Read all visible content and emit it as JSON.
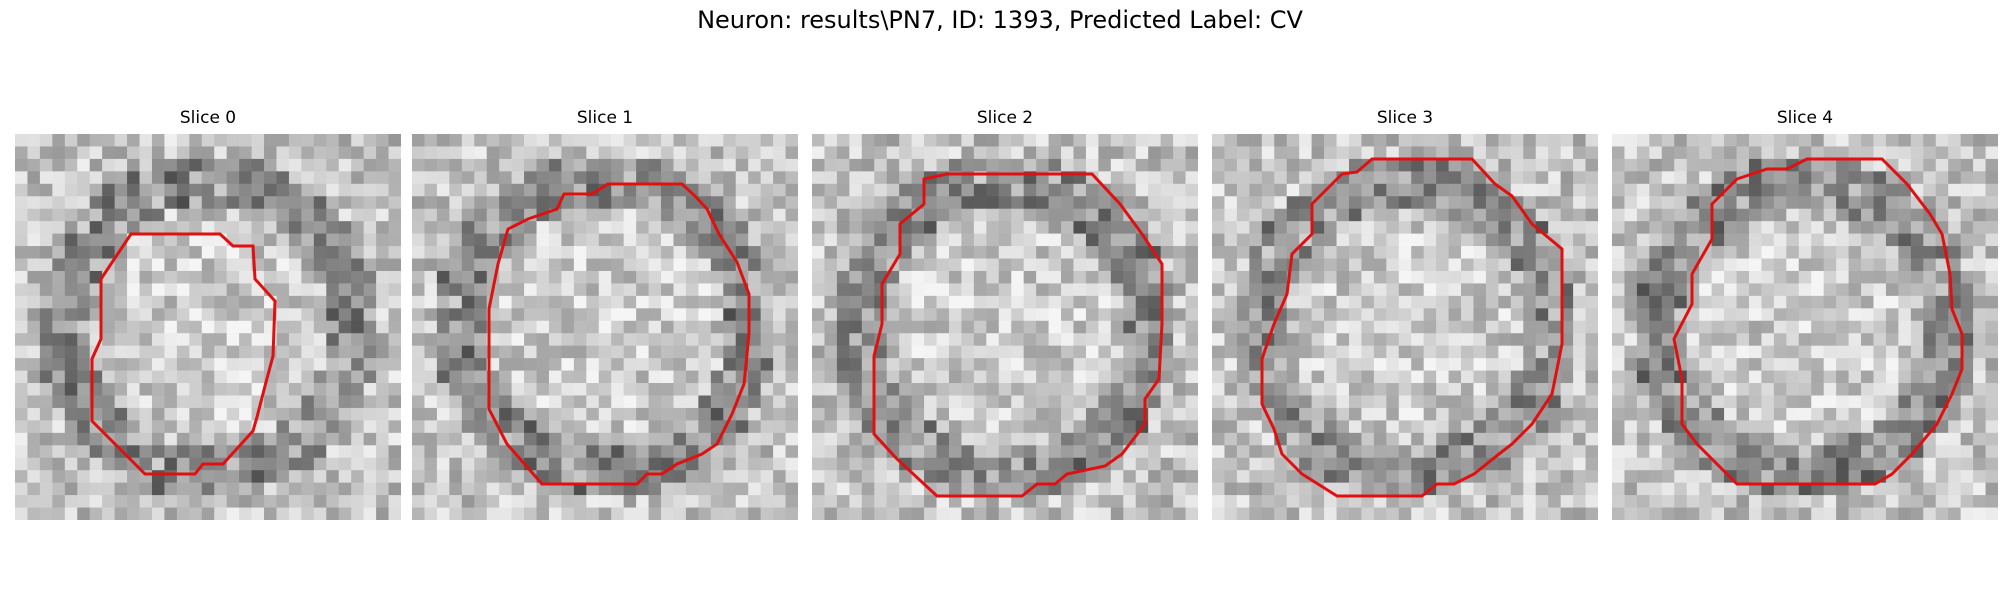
{
  "figure": {
    "title": "Neuron: results\\PN7, ID: 1393, Predicted Label: CV",
    "contour_color": "#e01010"
  },
  "panels": [
    {
      "title": "Slice 0"
    },
    {
      "title": "Slice 1"
    },
    {
      "title": "Slice 2"
    },
    {
      "title": "Slice 3"
    },
    {
      "title": "Slice 4"
    }
  ]
}
